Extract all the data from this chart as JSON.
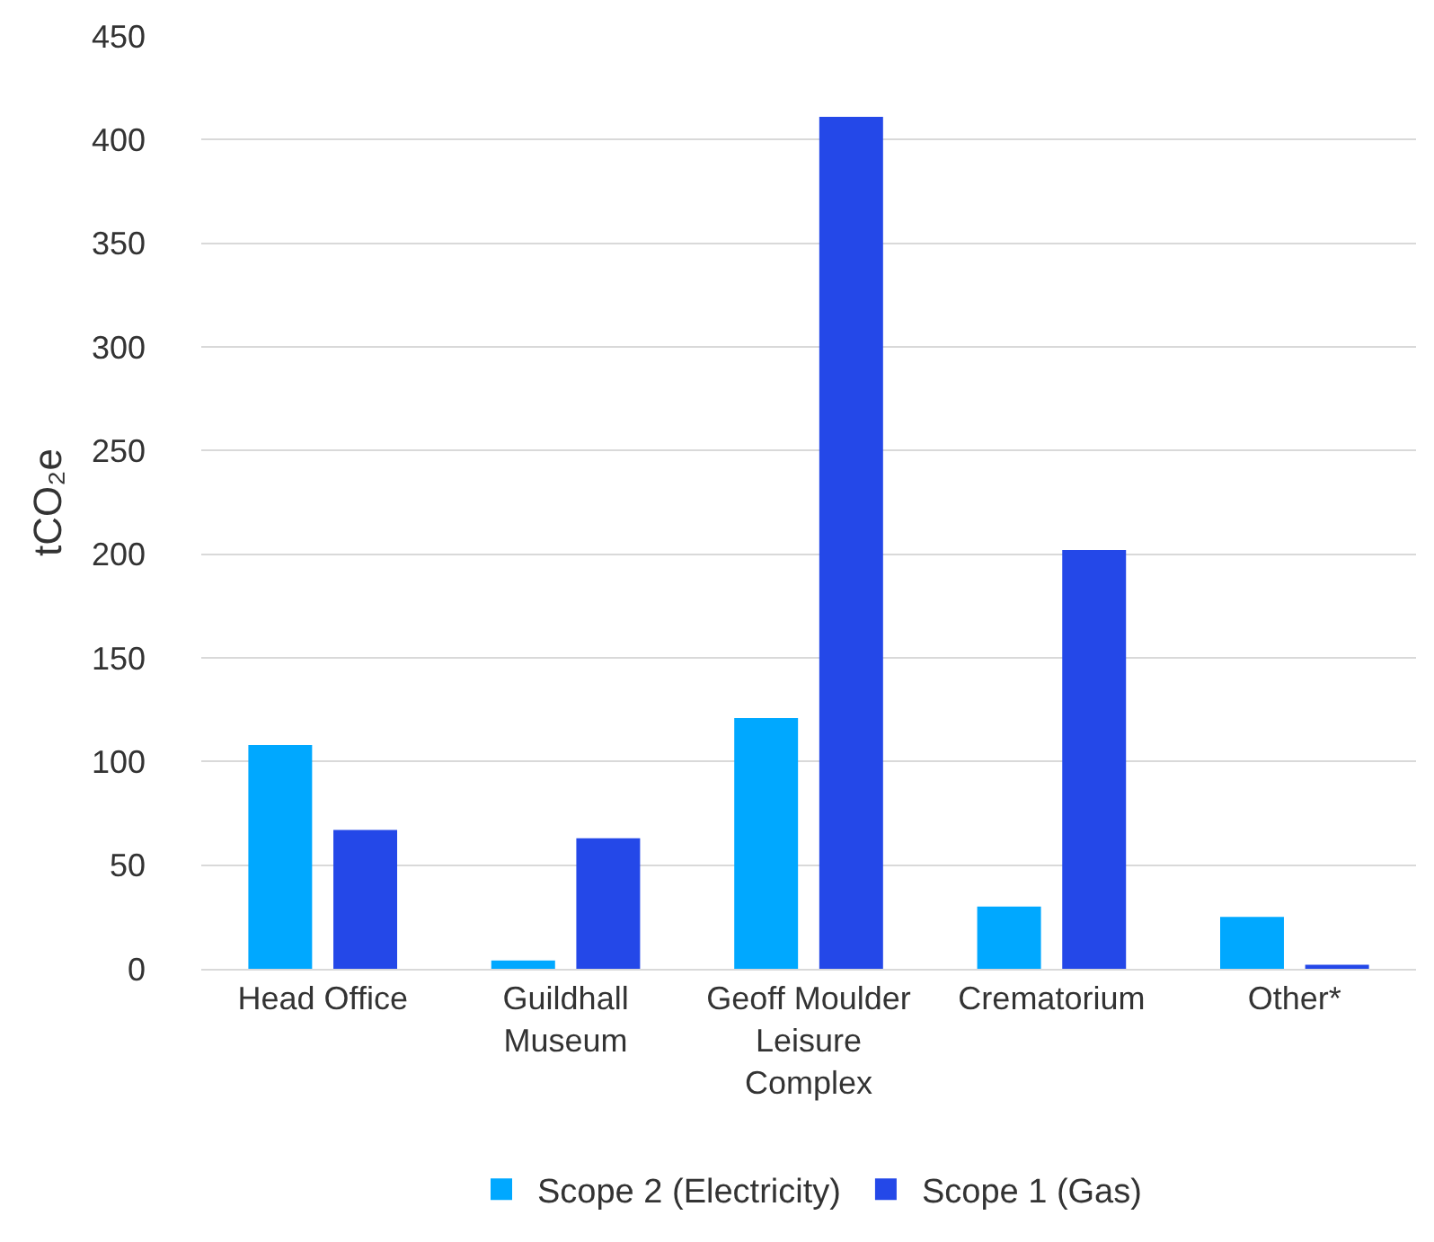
{
  "chart_data": {
    "type": "bar",
    "ylabel": "tCO₂e",
    "categories": [
      "Head Office",
      "Guildhall Museum",
      "Geoff Moulder Leisure Complex",
      "Crematorium",
      "Other*"
    ],
    "series": [
      {
        "name": "Scope 2 (Electricity)",
        "color": "#00a8ff",
        "values": [
          108,
          4,
          121,
          30,
          25
        ]
      },
      {
        "name": "Scope 1 (Gas)",
        "color": "#2448e8",
        "values": [
          67,
          63,
          411,
          202,
          2
        ]
      }
    ],
    "ylim": [
      0,
      450
    ],
    "yticks": [
      0,
      50,
      100,
      150,
      200,
      250,
      300,
      350,
      400,
      450
    ],
    "grid": "y",
    "legend": "bottom"
  }
}
